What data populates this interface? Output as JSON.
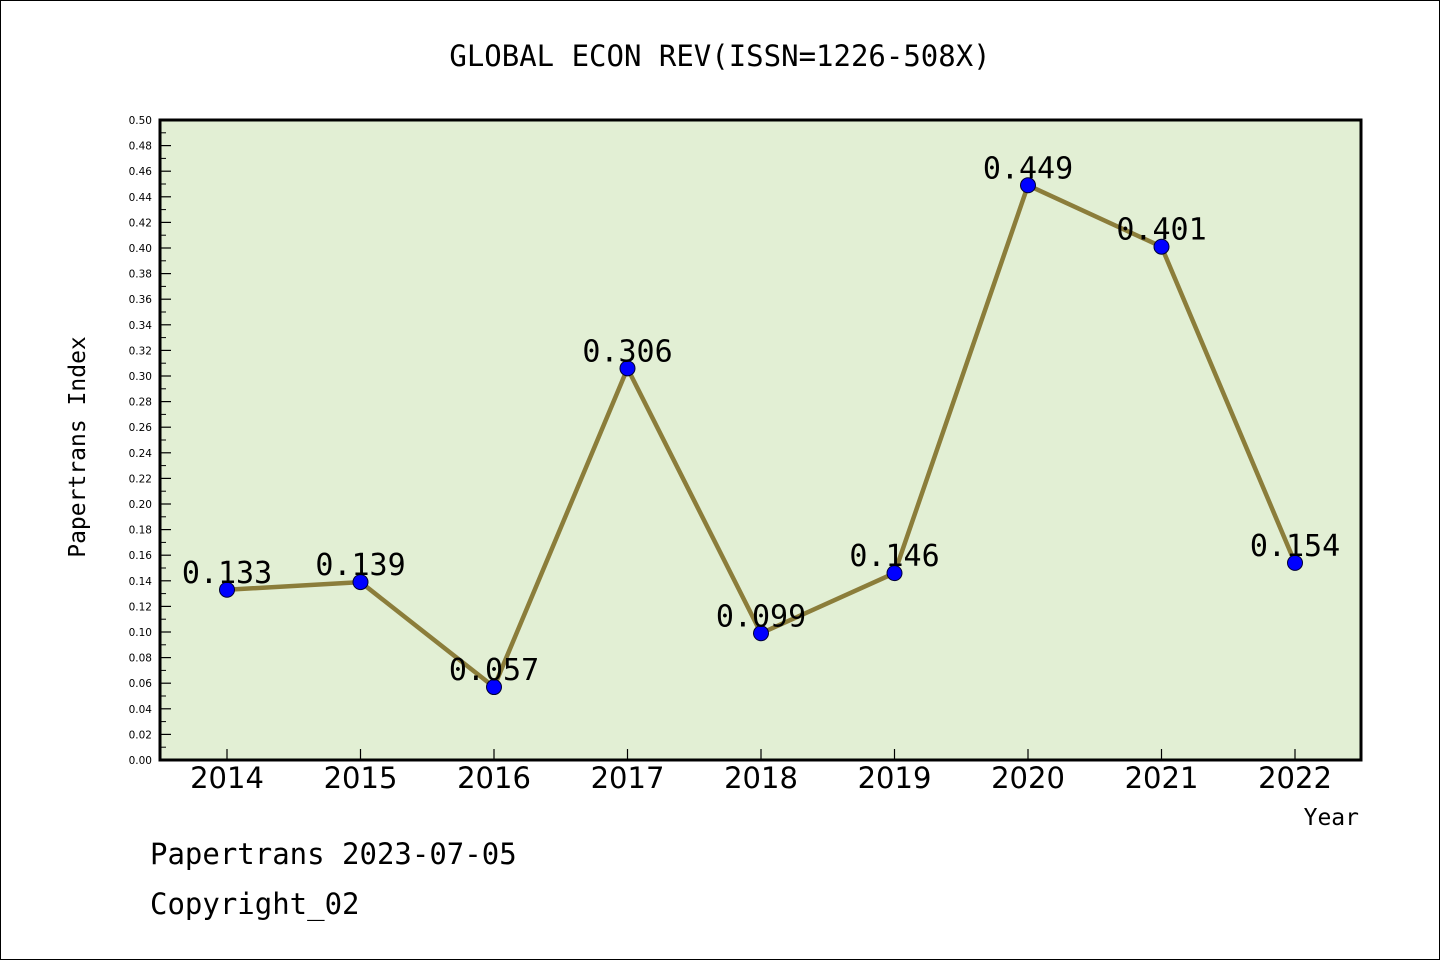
{
  "chart_data": {
    "type": "line",
    "title": "GLOBAL ECON REV(ISSN=1226-508X)",
    "xlabel": "Year",
    "ylabel": "Papertrans Index",
    "categories": [
      "2014",
      "2015",
      "2016",
      "2017",
      "2018",
      "2019",
      "2020",
      "2021",
      "2022"
    ],
    "series": [
      {
        "values": [
          0.133,
          0.139,
          0.057,
          0.306,
          0.099,
          0.146,
          0.449,
          0.401,
          0.154
        ],
        "data_labels": [
          "0.133",
          "0.139",
          "0.057",
          "0.306",
          "0.099",
          "0.146",
          "0.449",
          "0.401",
          "0.154"
        ]
      }
    ],
    "ylim": [
      0,
      0.5
    ],
    "y_ticks": [
      "0.00",
      "0.02",
      "0.04",
      "0.06",
      "0.08",
      "0.10",
      "0.12",
      "0.14",
      "0.16",
      "0.18",
      "0.20",
      "0.22",
      "0.24",
      "0.26",
      "0.28",
      "0.30",
      "0.32",
      "0.34",
      "0.36",
      "0.38",
      "0.40",
      "0.42",
      "0.44",
      "0.46",
      "0.48",
      "0.50"
    ],
    "grid": false,
    "legend": "none",
    "colors": {
      "plot_background": "#e2efd4",
      "line": "#8b7d3a",
      "marker": "#0000ff"
    }
  },
  "footer": {
    "credit": "Papertrans 2023-07-05",
    "copyright": "Copyright_02"
  }
}
